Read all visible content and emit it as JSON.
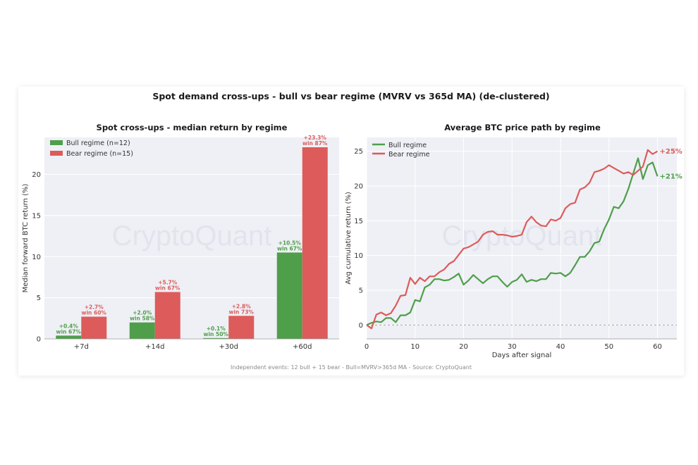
{
  "figure": {
    "title": "Spot demand cross-ups - bull vs bear regime (MVRV vs 365d MA)  (de-clustered)",
    "footer": "Independent events: 12 bull + 15 bear - Bull=MVRV>365d MA - Source: CryptoQuant",
    "watermark": "CryptoQuant",
    "colors": {
      "bull": "#4f9e4a",
      "bear": "#dd5b5b",
      "panel_bg": "#eef0f5"
    }
  },
  "chart_data": [
    {
      "type": "bar",
      "title": "Spot cross-ups - median return by regime",
      "xlabel": "",
      "ylabel": "Median forward BTC return (%)",
      "categories": [
        "+7d",
        "+14d",
        "+30d",
        "+60d"
      ],
      "ylim": [
        0,
        24.5
      ],
      "yticks": [
        0,
        5,
        10,
        15,
        20
      ],
      "grid": true,
      "legend_position": "top-left",
      "series": [
        {
          "name": "Bull regime (n=12)",
          "color": "#4f9e4a",
          "values": [
            0.4,
            2.0,
            0.1,
            10.5
          ],
          "labels": [
            "+0.4%",
            "+2.0%",
            "+0.1%",
            "+10.5%"
          ],
          "win": [
            "win 67%",
            "win 58%",
            "win 50%",
            "win 67%"
          ]
        },
        {
          "name": "Bear regime (n=15)",
          "color": "#dd5b5b",
          "values": [
            2.7,
            5.7,
            2.8,
            23.3
          ],
          "labels": [
            "+2.7%",
            "+5.7%",
            "+2.8%",
            "+23.3%"
          ],
          "win": [
            "win 60%",
            "win 67%",
            "win 73%",
            "win 87%"
          ]
        }
      ]
    },
    {
      "type": "line",
      "title": "Average BTC price path by regime",
      "xlabel": "Days after signal",
      "ylabel": "Avg cumulative return (%)",
      "xlim": [
        0,
        64
      ],
      "ylim": [
        -2,
        27
      ],
      "xticks": [
        0,
        10,
        20,
        30,
        40,
        50,
        60
      ],
      "yticks": [
        0,
        5,
        10,
        15,
        20,
        25
      ],
      "grid": true,
      "legend_position": "top-left",
      "zero_line": "dashed",
      "x": [
        0,
        1,
        2,
        3,
        4,
        5,
        6,
        7,
        8,
        9,
        10,
        11,
        12,
        13,
        14,
        15,
        16,
        17,
        18,
        19,
        20,
        21,
        22,
        23,
        24,
        25,
        26,
        27,
        28,
        29,
        30,
        31,
        32,
        33,
        34,
        35,
        36,
        37,
        38,
        39,
        40,
        41,
        42,
        43,
        44,
        45,
        46,
        47,
        48,
        49,
        50,
        51,
        52,
        53,
        54,
        55,
        56,
        57,
        58,
        59,
        60
      ],
      "series": [
        {
          "name": "Bull regime",
          "color": "#4f9e4a",
          "end_label": "+21%",
          "values": [
            0,
            0.3,
            0.5,
            0.4,
            1.0,
            1.0,
            0.4,
            1.4,
            1.4,
            1.8,
            3.6,
            3.4,
            5.4,
            5.8,
            6.6,
            6.6,
            6.4,
            6.5,
            6.9,
            7.4,
            5.8,
            6.4,
            7.2,
            6.6,
            6.0,
            6.6,
            7.0,
            7.0,
            6.2,
            5.5,
            6.2,
            6.5,
            7.3,
            6.2,
            6.5,
            6.3,
            6.6,
            6.6,
            7.5,
            7.4,
            7.5,
            7.0,
            7.5,
            8.6,
            9.8,
            9.8,
            10.6,
            11.8,
            12.0,
            13.8,
            15.2,
            17.0,
            16.8,
            17.8,
            19.6,
            21.8,
            24.0,
            21.0,
            23.0,
            23.4,
            21.4
          ]
        },
        {
          "name": "Bear regime",
          "color": "#dd5b5b",
          "end_label": "+25%",
          "values": [
            0,
            -0.5,
            1.5,
            1.8,
            1.4,
            1.7,
            2.8,
            4.2,
            4.3,
            6.8,
            5.9,
            6.8,
            6.3,
            7.0,
            7.0,
            7.6,
            8.0,
            8.8,
            9.2,
            10.1,
            11.0,
            11.2,
            11.6,
            12.0,
            13.0,
            13.4,
            13.5,
            13.0,
            13.0,
            12.9,
            12.7,
            12.8,
            13.0,
            14.8,
            15.6,
            14.8,
            14.3,
            14.2,
            15.2,
            15.0,
            15.4,
            16.8,
            17.4,
            17.6,
            19.5,
            19.8,
            20.5,
            22.0,
            22.2,
            22.5,
            23.0,
            22.6,
            22.2,
            21.8,
            22.0,
            21.6,
            22.2,
            22.8,
            25.2,
            24.6,
            25.0
          ]
        }
      ]
    }
  ]
}
